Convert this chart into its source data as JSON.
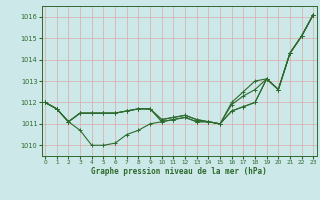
{
  "bg_color": "#cce8e8",
  "grid_color": "#aacccc",
  "line_color": "#2d6a2d",
  "ylim": [
    1009.5,
    1016.5
  ],
  "xlim": [
    -0.3,
    23.3
  ],
  "yticks": [
    1010,
    1011,
    1012,
    1013,
    1014,
    1015,
    1016
  ],
  "xticks": [
    0,
    1,
    2,
    3,
    4,
    5,
    6,
    7,
    8,
    9,
    10,
    11,
    12,
    13,
    14,
    15,
    16,
    17,
    18,
    19,
    20,
    21,
    22,
    23
  ],
  "xlabel": "Graphe pression niveau de la mer (hPa)",
  "curves": [
    [
      1012.0,
      1011.7,
      1011.1,
      1010.7,
      1010.0,
      1010.0,
      1010.1,
      1010.5,
      1010.7,
      1011.0,
      1011.1,
      1011.2,
      1011.3,
      1011.1,
      1011.1,
      1011.0,
      1011.6,
      1011.8,
      1012.0,
      1013.1,
      1012.6,
      1014.3,
      1015.1,
      1016.1
    ],
    [
      1012.0,
      1011.7,
      1011.1,
      1011.5,
      1011.5,
      1011.5,
      1011.5,
      1011.6,
      1011.7,
      1011.7,
      1011.1,
      1011.2,
      1011.3,
      1011.1,
      1011.1,
      1011.0,
      1011.6,
      1011.8,
      1012.0,
      1013.1,
      1012.6,
      1014.3,
      1015.1,
      1016.1
    ],
    [
      1012.0,
      1011.7,
      1011.1,
      1011.5,
      1011.5,
      1011.5,
      1011.5,
      1011.6,
      1011.7,
      1011.7,
      1011.2,
      1011.3,
      1011.4,
      1011.2,
      1011.1,
      1011.0,
      1011.9,
      1012.3,
      1012.6,
      1013.1,
      1012.6,
      1014.3,
      1015.1,
      1016.1
    ],
    [
      1012.0,
      1011.7,
      1011.1,
      1011.5,
      1011.5,
      1011.5,
      1011.5,
      1011.6,
      1011.7,
      1011.7,
      1011.2,
      1011.3,
      1011.4,
      1011.2,
      1011.1,
      1011.0,
      1012.0,
      1012.5,
      1013.0,
      1013.1,
      1012.6,
      1014.3,
      1015.1,
      1016.1
    ]
  ],
  "marker": "+",
  "marker_size": 3.5,
  "linewidth": 0.8
}
